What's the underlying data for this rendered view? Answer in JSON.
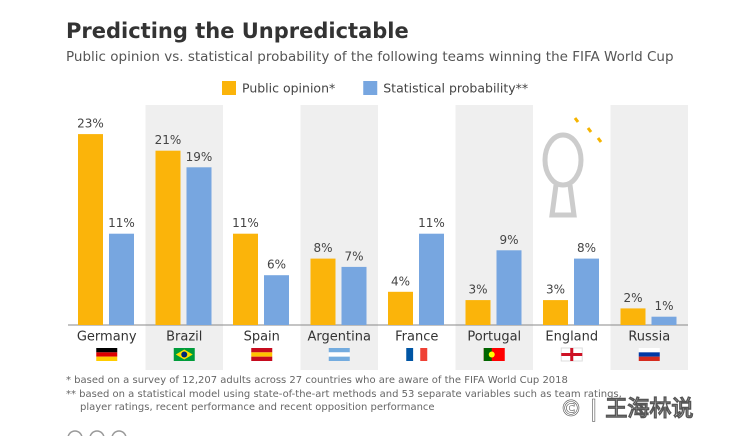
{
  "chart_data": {
    "type": "bar",
    "title": "Predicting the Unpredictable",
    "subtitle": "Public opinion vs. statistical probability of the following teams winning the FIFA World Cup",
    "categories": [
      "Germany",
      "Brazil",
      "Spain",
      "Argentina",
      "France",
      "Portugal",
      "England",
      "Russia"
    ],
    "series": [
      {
        "name": "Public opinion*",
        "color": "#fbb40a",
        "values": [
          23,
          21,
          11,
          8,
          4,
          3,
          3,
          2
        ],
        "value_labels": [
          "23%",
          "21%",
          "11%",
          "8%",
          "4%",
          "3%",
          "3%",
          "2%"
        ]
      },
      {
        "name": "Statistical probability**",
        "color": "#77a6e0",
        "values": [
          11,
          19,
          6,
          7,
          11,
          9,
          8,
          1
        ],
        "value_labels": [
          "11%",
          "19%",
          "6%",
          "7%",
          "11%",
          "9%",
          "8%",
          "1%"
        ]
      }
    ],
    "footnotes": [
      "*  based on a survey of 12,207 adults across 27 countries who are aware of the FIFA World Cup 2018",
      "** based on a statistical model using state-of-the-art methods and 53 separate variables such as team ratings,",
      "player ratings, recent performance and recent opposition performance"
    ],
    "watermark": "© | 王海林说"
  }
}
